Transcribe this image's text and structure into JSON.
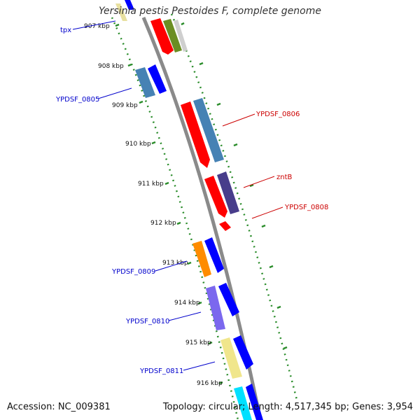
{
  "title": "Yersinia pestis Pestoides F, complete genome",
  "footer": {
    "accession": "Accession: NC_009381",
    "summary": "Topology: circular; Length: 4,517,345 bp; Genes: 3,954"
  },
  "ticks": [
    "907 kbp",
    "908 kbp",
    "909 kbp",
    "910 kbp",
    "911 kbp",
    "912 kbp",
    "913 kbp",
    "914 kbp",
    "915 kbp",
    "916 kbp"
  ],
  "genes": {
    "tpx": "tpx",
    "ypdsf_0805": "YPDSF_0805",
    "ypdsf_0806": "YPDSF_0806",
    "zntb": "zntB",
    "ypdsf_0808": "YPDSF_0808",
    "ypdsf_0809": "YPDSF_0809",
    "ypdsf_0810": "YPDSF_0810",
    "ypdsf_0811": "YPDSF_0811"
  },
  "colors": {
    "forward_label": "#0000cc",
    "reverse_label": "#cc0000",
    "backbone": "#808080",
    "tick": "#228B22"
  }
}
